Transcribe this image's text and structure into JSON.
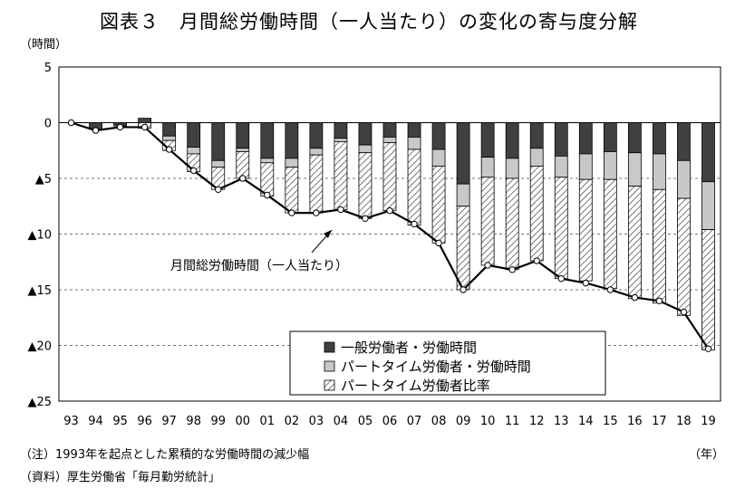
{
  "chart_data": {
    "type": "bar",
    "title": "図表３　月間総労働時間（一人当たり）の変化の寄与度分解",
    "y_unit": "（時間）",
    "x_unit": "（年）",
    "note": "（注）1993年を起点とした累積的な労働時間の減少幅",
    "source": "（資料）厚生労働省「毎月勤労統計」",
    "annotation": "月間総労働時間（一人当たり）",
    "ylim": [
      -25,
      5
    ],
    "yticks": [
      5,
      0,
      -5,
      -10,
      -15,
      -20,
      -25
    ],
    "ytick_labels": [
      "5",
      "0",
      "▲5",
      "▲10",
      "▲15",
      "▲20",
      "▲25"
    ],
    "categories": [
      "93",
      "94",
      "95",
      "96",
      "97",
      "98",
      "99",
      "00",
      "01",
      "02",
      "03",
      "04",
      "05",
      "06",
      "07",
      "08",
      "09",
      "10",
      "11",
      "12",
      "13",
      "14",
      "15",
      "16",
      "17",
      "18",
      "19"
    ],
    "series": [
      {
        "name": "一般労働者・労働時間",
        "color": "#404040",
        "pattern": "solid",
        "values": [
          0,
          -0.6,
          -0.3,
          0.4,
          -1.2,
          -2.2,
          -3.4,
          -2.3,
          -3.2,
          -3.2,
          -2.3,
          -1.4,
          -2.0,
          -1.3,
          -1.3,
          -2.4,
          -5.5,
          -3.1,
          -3.2,
          -2.3,
          -3.0,
          -2.8,
          -2.6,
          -2.7,
          -2.8,
          -3.4,
          -5.3
        ]
      },
      {
        "name": "パートタイム労働者・労働時間",
        "color": "#c8c8c8",
        "pattern": "solid",
        "values": [
          0,
          0,
          0,
          0,
          -0.4,
          -0.6,
          -0.6,
          -0.3,
          -0.4,
          -0.8,
          -0.6,
          -0.3,
          -0.7,
          -0.5,
          -1.1,
          -1.5,
          -2.0,
          -1.8,
          -1.8,
          -1.6,
          -1.9,
          -2.3,
          -2.5,
          -3.0,
          -3.2,
          -3.4,
          -4.3
        ]
      },
      {
        "name": "パートタイム労働者比率",
        "color": "#ffffff",
        "pattern": "hatch",
        "values": [
          0,
          0,
          0,
          -0.5,
          -0.9,
          -1.6,
          -2.0,
          -2.4,
          -3.0,
          -4.1,
          -5.2,
          -6.1,
          -5.9,
          -6.1,
          -6.8,
          -6.9,
          -7.5,
          -7.9,
          -8.2,
          -8.5,
          -9.1,
          -9.1,
          -9.8,
          -10.1,
          -10.2,
          -10.5,
          -10.8
        ]
      },
      {
        "name": "月間総労働時間（一人当たり）",
        "type": "line",
        "color": "#000000",
        "values": [
          0,
          -0.7,
          -0.4,
          -0.4,
          -2.4,
          -4.3,
          -6.0,
          -5.0,
          -6.5,
          -8.1,
          -8.1,
          -7.8,
          -8.6,
          -7.9,
          -9.1,
          -10.8,
          -15.0,
          -12.8,
          -13.2,
          -12.4,
          -14.0,
          -14.4,
          -15.0,
          -15.7,
          -16.0,
          -17.0,
          -20.3
        ]
      }
    ],
    "legend_position": "bottom-right",
    "grid": "dashed-horizontal"
  }
}
